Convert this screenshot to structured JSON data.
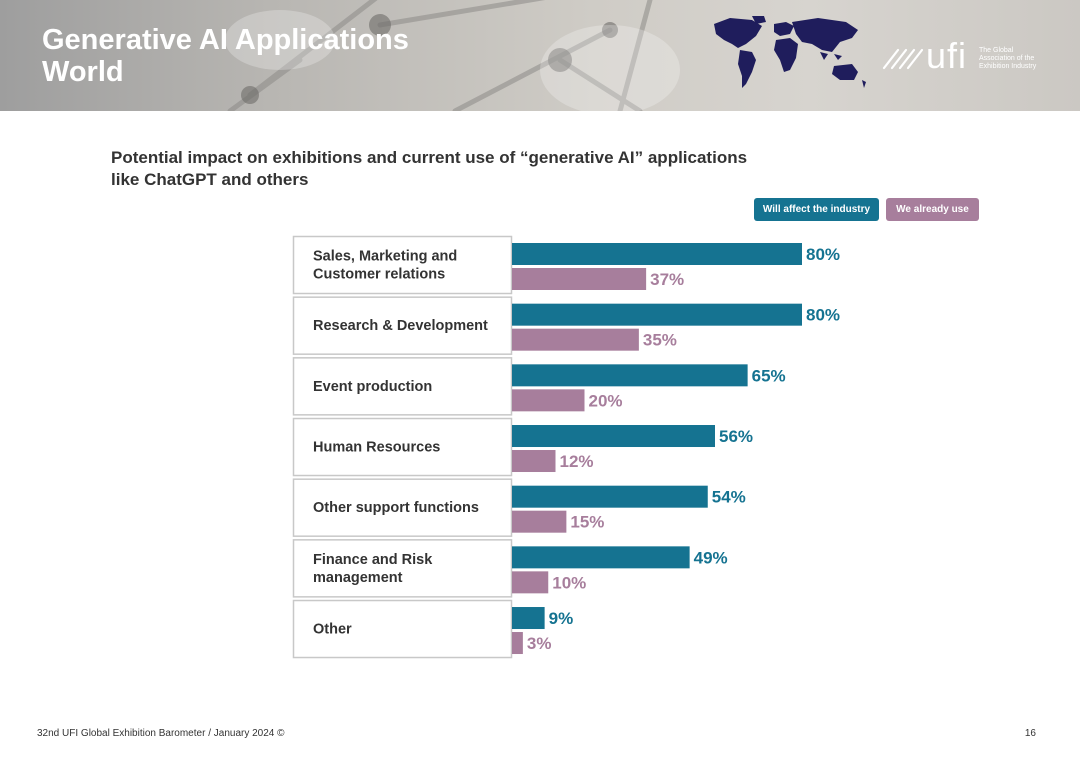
{
  "header": {
    "title_line1": "Generative AI Applications",
    "title_line2": "World"
  },
  "logo": {
    "wordmark": "ufi",
    "tagline_line1": "The Global",
    "tagline_line2": "Association of the",
    "tagline_line3": "Exhibition Industry"
  },
  "subtitle": {
    "line1": "Potential impact on exhibitions and current use of “generative AI” applications",
    "line2": "like ChatGPT and others"
  },
  "colors": {
    "affect": "#157391",
    "use": "#a77e9c",
    "header_gray": "#b9b7b3",
    "map": "#1f1d5c"
  },
  "chart_data": {
    "type": "bar",
    "orientation": "horizontal",
    "categories": [
      [
        "Sales, Marketing and",
        "Customer relations"
      ],
      [
        "Research & Development"
      ],
      [
        "Event production"
      ],
      [
        "Human Resources"
      ],
      [
        "Other support functions"
      ],
      [
        "Finance and Risk",
        "management"
      ],
      [
        "Other"
      ]
    ],
    "series": [
      {
        "name": "Will affect the industry",
        "values": [
          80,
          80,
          65,
          56,
          54,
          49,
          9
        ],
        "labels": [
          "80%",
          "80%",
          "65%",
          "56%",
          "54%",
          "49%",
          "9%"
        ]
      },
      {
        "name": "We already use",
        "values": [
          37,
          35,
          20,
          12,
          15,
          10,
          3
        ],
        "labels": [
          "37%",
          "35%",
          "20%",
          "12%",
          "15%",
          "10%",
          "3%"
        ]
      }
    ],
    "unit": "%",
    "xlim": [
      0,
      100
    ],
    "legend": "top-right",
    "grid": false
  },
  "footer": {
    "note": "32nd UFI Global Exhibition Barometer / January 2024 ©",
    "page": "16"
  }
}
